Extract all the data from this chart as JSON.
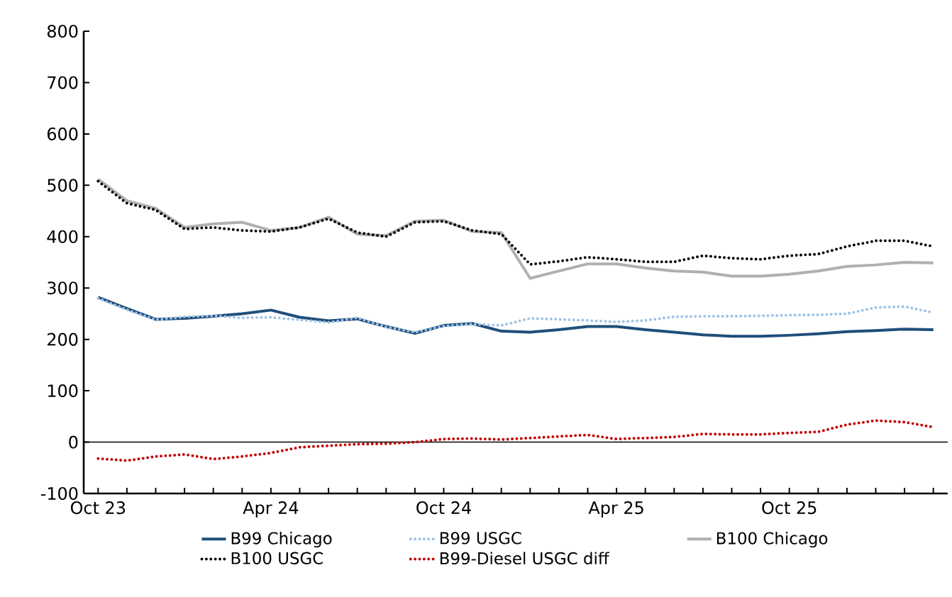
{
  "chart_data": {
    "type": "line",
    "x": [
      "2023-10",
      "2023-11",
      "2023-12",
      "2024-01",
      "2024-02",
      "2024-03",
      "2024-04",
      "2024-05",
      "2024-06",
      "2024-07",
      "2024-08",
      "2024-09",
      "2024-10",
      "2024-11",
      "2024-12",
      "2025-01",
      "2025-02",
      "2025-03",
      "2025-04",
      "2025-05",
      "2025-06",
      "2025-07",
      "2025-08",
      "2025-09",
      "2025-10",
      "2025-11",
      "2025-12",
      "2026-01",
      "2026-02",
      "2026-03"
    ],
    "series": [
      {
        "name": "B99 Chicago",
        "color": "#1f4e79",
        "line_style": "solid",
        "values": [
          282,
          260,
          239,
          241,
          245,
          250,
          257,
          243,
          236,
          240,
          225,
          212,
          227,
          231,
          216,
          214,
          219,
          225,
          225,
          219,
          214,
          209,
          206,
          206,
          208,
          211,
          215,
          217,
          220,
          219
        ]
      },
      {
        "name": "B99 USGC",
        "color": "#9dc3e6",
        "line_style": "dotted",
        "values": [
          280,
          258,
          238,
          244,
          246,
          242,
          243,
          238,
          233,
          242,
          224,
          214,
          226,
          230,
          227,
          241,
          239,
          237,
          234,
          237,
          244,
          245,
          245,
          246,
          247,
          248,
          250,
          262,
          264,
          252
        ]
      },
      {
        "name": "B100 Chicago",
        "color": "#b0b0b0",
        "line_style": "solid",
        "values": [
          512,
          470,
          455,
          418,
          425,
          428,
          412,
          418,
          438,
          405,
          402,
          430,
          432,
          410,
          408,
          319,
          333,
          347,
          347,
          339,
          333,
          331,
          323,
          323,
          327,
          333,
          342,
          345,
          350,
          349
        ]
      },
      {
        "name": "B100 USGC",
        "color": "#000000",
        "line_style": "dotted",
        "values": [
          508,
          465,
          452,
          415,
          418,
          412,
          410,
          418,
          435,
          408,
          400,
          428,
          430,
          412,
          405,
          346,
          352,
          360,
          356,
          351,
          351,
          363,
          358,
          356,
          363,
          366,
          381,
          392,
          392,
          381
        ]
      },
      {
        "name": "B99-Diesel USGC diff",
        "color": "#c00000",
        "line_style": "dotted",
        "values": [
          -32,
          -36,
          -28,
          -24,
          -33,
          -28,
          -21,
          -10,
          -7,
          -4,
          -3,
          0,
          6,
          7,
          5,
          8,
          11,
          14,
          6,
          8,
          10,
          16,
          15,
          15,
          18,
          20,
          34,
          42,
          39,
          29
        ]
      }
    ],
    "xlim": [
      "2023-09-16",
      "2026-03-16"
    ],
    "xticks": [
      {
        "value": "2023-10",
        "label": "Oct 23"
      },
      {
        "value": "2023-11",
        "label": null
      },
      {
        "value": "2023-12",
        "label": null
      },
      {
        "value": "2024-01",
        "label": null
      },
      {
        "value": "2024-02",
        "label": null
      },
      {
        "value": "2024-03",
        "label": null
      },
      {
        "value": "2024-04",
        "label": "Apr 24"
      },
      {
        "value": "2024-05",
        "label": null
      },
      {
        "value": "2024-06",
        "label": null
      },
      {
        "value": "2024-07",
        "label": null
      },
      {
        "value": "2024-08",
        "label": null
      },
      {
        "value": "2024-09",
        "label": null
      },
      {
        "value": "2024-10",
        "label": "Oct 24"
      },
      {
        "value": "2024-11",
        "label": null
      },
      {
        "value": "2024-12",
        "label": null
      },
      {
        "value": "2025-01",
        "label": null
      },
      {
        "value": "2025-02",
        "label": null
      },
      {
        "value": "2025-03",
        "label": null
      },
      {
        "value": "2025-04",
        "label": "Apr 25"
      },
      {
        "value": "2025-05",
        "label": null
      },
      {
        "value": "2025-06",
        "label": null
      },
      {
        "value": "2025-07",
        "label": null
      },
      {
        "value": "2025-08",
        "label": null
      },
      {
        "value": "2025-09",
        "label": null
      },
      {
        "value": "2025-10",
        "label": "Oct 25"
      },
      {
        "value": "2025-11",
        "label": null
      },
      {
        "value": "2025-12",
        "label": null
      },
      {
        "value": "2026-01",
        "label": null
      },
      {
        "value": "2026-02",
        "label": null
      },
      {
        "value": "2026-03",
        "label": null
      }
    ],
    "ylim": [
      -100,
      800
    ],
    "yticks": [
      -100,
      0,
      100,
      200,
      300,
      400,
      500,
      600,
      700,
      800
    ],
    "ref_lines": [
      {
        "axis": "y",
        "value": 0,
        "color": "#000000"
      }
    ],
    "grid": false,
    "legend": "bottom"
  }
}
